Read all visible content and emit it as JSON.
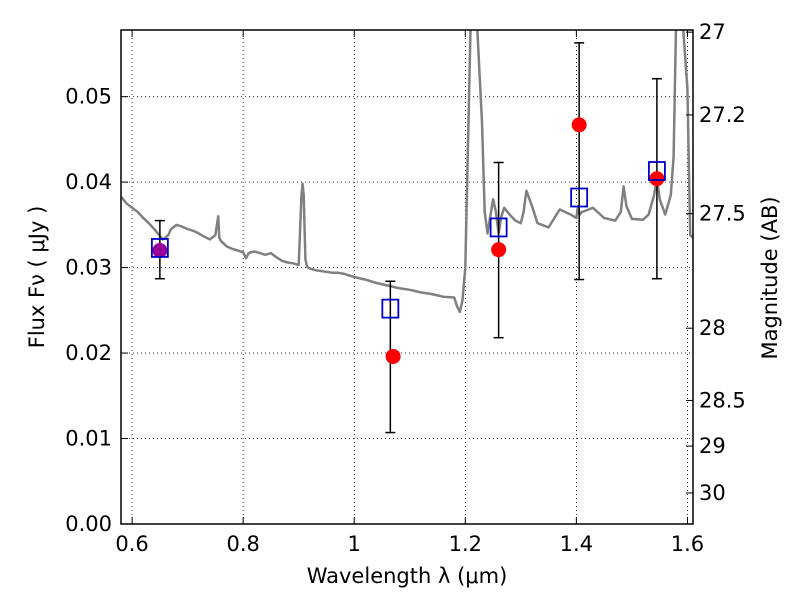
{
  "chart_data": {
    "type": "scatter",
    "title": "",
    "xlabel": "Wavelength  λ (μm)",
    "ylabel": "Flux  Fν  ( μJy )",
    "ylabel_right": "Magnitude (AB)",
    "xlim": [
      0.58,
      1.61
    ],
    "ylim": [
      0.0,
      0.0578
    ],
    "grid": true,
    "x_ticks": [
      0.6,
      0.8,
      1.0,
      1.2,
      1.4,
      1.6
    ],
    "x_tick_labels": [
      "0.6",
      "0.8",
      "1",
      "1.2",
      "1.4",
      "1.6"
    ],
    "y_ticks": [
      0.0,
      0.01,
      0.02,
      0.03,
      0.04,
      0.05
    ],
    "y_tick_labels": [
      "0.00",
      "0.01",
      "0.02",
      "0.03",
      "0.04",
      "0.05"
    ],
    "right_ticks": [
      27,
      27.2,
      27.5,
      28,
      28.5,
      29,
      30
    ],
    "right_tick_labels": [
      "27",
      "27.2",
      "27.5",
      "28",
      "28.5",
      "29",
      "30"
    ],
    "colors": {
      "model": "#808080",
      "observed": "#ff0000",
      "synthetic": "#0000cc",
      "error": "#000000",
      "overlap": "#990099"
    },
    "series": [
      {
        "name": "model spectrum",
        "kind": "line",
        "x": [
          0.58,
          0.59,
          0.6,
          0.61,
          0.62,
          0.63,
          0.64,
          0.65,
          0.655,
          0.66,
          0.665,
          0.67,
          0.68,
          0.69,
          0.7,
          0.71,
          0.72,
          0.73,
          0.74,
          0.75,
          0.755,
          0.757,
          0.76,
          0.77,
          0.78,
          0.79,
          0.8,
          0.805,
          0.81,
          0.815,
          0.82,
          0.83,
          0.84,
          0.85,
          0.86,
          0.87,
          0.88,
          0.89,
          0.9,
          0.905,
          0.907,
          0.909,
          0.912,
          0.915,
          0.92,
          0.93,
          0.94,
          0.95,
          0.96,
          0.97,
          0.98,
          0.99,
          1.0,
          1.02,
          1.04,
          1.06,
          1.08,
          1.1,
          1.12,
          1.14,
          1.16,
          1.18,
          1.185,
          1.19,
          1.195,
          1.2,
          1.205,
          1.21,
          1.215,
          1.22,
          1.23,
          1.235,
          1.24,
          1.245,
          1.25,
          1.255,
          1.26,
          1.265,
          1.27,
          1.28,
          1.29,
          1.3,
          1.305,
          1.31,
          1.32,
          1.33,
          1.35,
          1.37,
          1.39,
          1.4,
          1.403,
          1.406,
          1.41,
          1.43,
          1.45,
          1.47,
          1.48,
          1.485,
          1.49,
          1.5,
          1.52,
          1.53,
          1.54,
          1.545,
          1.55,
          1.56,
          1.57,
          1.575,
          1.58,
          1.59,
          1.6,
          1.605,
          1.61
        ],
        "y": [
          0.0383,
          0.0375,
          0.037,
          0.0365,
          0.0358,
          0.0352,
          0.0345,
          0.0337,
          0.0333,
          0.0335,
          0.0338,
          0.0345,
          0.035,
          0.0348,
          0.0345,
          0.0343,
          0.034,
          0.0336,
          0.0333,
          0.0338,
          0.036,
          0.0335,
          0.0331,
          0.0325,
          0.0322,
          0.032,
          0.0318,
          0.0311,
          0.0317,
          0.0318,
          0.0319,
          0.0317,
          0.0315,
          0.0317,
          0.0312,
          0.0308,
          0.0306,
          0.0305,
          0.0303,
          0.0385,
          0.0398,
          0.0385,
          0.031,
          0.0301,
          0.0299,
          0.0297,
          0.0296,
          0.0295,
          0.0294,
          0.0294,
          0.0293,
          0.0291,
          0.0289,
          0.0286,
          0.0282,
          0.0279,
          0.0276,
          0.0274,
          0.0271,
          0.0269,
          0.0266,
          0.0265,
          0.0255,
          0.0248,
          0.0262,
          0.03,
          0.045,
          0.06,
          0.06,
          0.06,
          0.047,
          0.0365,
          0.034,
          0.036,
          0.038,
          0.0365,
          0.034,
          0.036,
          0.037,
          0.0362,
          0.0355,
          0.0352,
          0.0365,
          0.039,
          0.0372,
          0.0352,
          0.0347,
          0.0368,
          0.0362,
          0.0358,
          0.0372,
          0.0362,
          0.0365,
          0.037,
          0.0358,
          0.0355,
          0.0365,
          0.0395,
          0.0372,
          0.0357,
          0.0356,
          0.0362,
          0.0385,
          0.0405,
          0.038,
          0.0362,
          0.0385,
          0.043,
          0.06,
          0.06,
          0.051,
          0.0338,
          0.0335
        ]
      },
      {
        "name": "observed photometry",
        "kind": "points",
        "marker": "circle",
        "x": [
          0.65,
          1.07,
          1.26,
          1.405,
          1.545
        ],
        "y": [
          0.032,
          0.0196,
          0.0321,
          0.0467,
          0.0404
        ]
      },
      {
        "name": "synthetic photometry",
        "kind": "points",
        "marker": "square",
        "x": [
          0.65,
          1.065,
          1.26,
          1.405,
          1.545
        ],
        "y": [
          0.0323,
          0.0252,
          0.0347,
          0.0382,
          0.0413
        ]
      },
      {
        "name": "error bars",
        "kind": "errorbar",
        "x": [
          0.65,
          1.065,
          1.26,
          1.405,
          1.545
        ],
        "low": [
          0.0287,
          0.0107,
          0.0218,
          0.0286,
          0.0287
        ],
        "high": [
          0.0355,
          0.0284,
          0.0423,
          0.0563,
          0.0521
        ]
      }
    ]
  }
}
